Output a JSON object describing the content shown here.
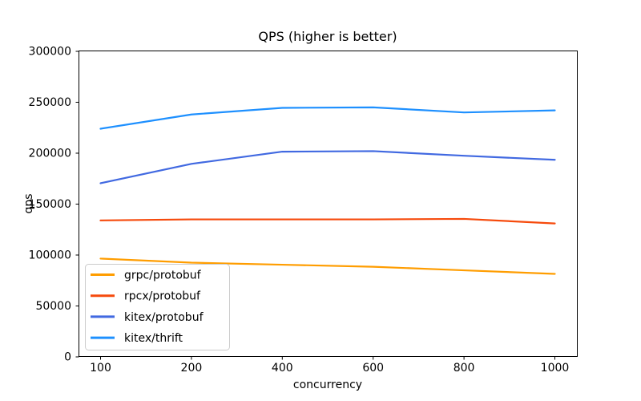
{
  "figure": {
    "background": "#ffffff"
  },
  "chart_data": {
    "type": "line",
    "title": "QPS (higher is better)",
    "xlabel": "concurrency",
    "ylabel": "qps",
    "categories": [
      100,
      200,
      400,
      600,
      800,
      1000
    ],
    "x_tick_labels": [
      "100",
      "200",
      "400",
      "600",
      "800",
      "1000"
    ],
    "ylim": [
      0,
      300000
    ],
    "y_ticks": [
      0,
      50000,
      100000,
      150000,
      200000,
      250000,
      300000
    ],
    "y_tick_labels": [
      "0",
      "50000",
      "100000",
      "150000",
      "200000",
      "250000",
      "300000"
    ],
    "grid": false,
    "legend_position": "lower-left",
    "series": [
      {
        "name": "grpc/protobuf",
        "color": "#ff9d00",
        "values": [
          96500,
          92500,
          90500,
          88500,
          85000,
          81500
        ]
      },
      {
        "name": "rpcx/protobuf",
        "color": "#f64a0c",
        "values": [
          134000,
          135000,
          135000,
          135000,
          135500,
          131000
        ]
      },
      {
        "name": "kitex/protobuf",
        "color": "#4169e1",
        "values": [
          170500,
          189500,
          201500,
          202000,
          197500,
          193500
        ]
      },
      {
        "name": "kitex/thrift",
        "color": "#1e90ff",
        "values": [
          224000,
          238000,
          244500,
          245000,
          240000,
          242000
        ]
      }
    ]
  }
}
